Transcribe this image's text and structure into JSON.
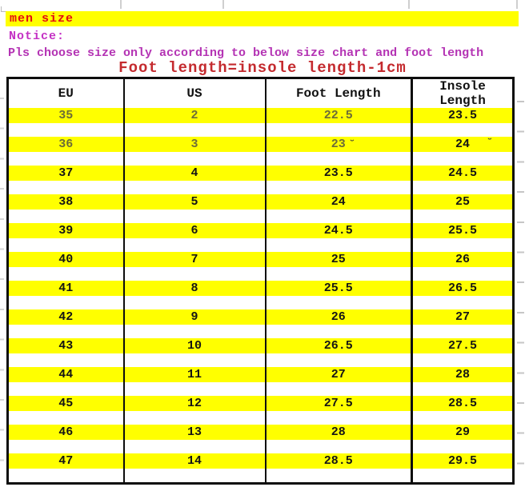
{
  "page": {
    "header_note": "men size",
    "notice_label": "Notice:",
    "notice_text": "Pls choose size only according to below size chart and foot length",
    "formula": "Foot length=insole length-1cm"
  },
  "colors": {
    "highlight_yellow": "#ffff00",
    "header_note_red": "#e30b12",
    "notice_magenta": "#c430c4",
    "formula_red": "#c42a2e",
    "table_border_black": "#0d0d0d",
    "muted_row_text_olive": "#6d6d38"
  },
  "size_chart": {
    "columns": [
      "EU",
      "US",
      "Foot Length",
      "Insole Length"
    ],
    "rows": [
      {
        "eu": "35",
        "us": "2",
        "foot": "22.5",
        "insole": "23.5",
        "muted": true
      },
      {
        "eu": "36",
        "us": "3",
        "foot": "23",
        "insole": "24",
        "muted": true
      },
      {
        "eu": "37",
        "us": "4",
        "foot": "23.5",
        "insole": "24.5",
        "muted": false
      },
      {
        "eu": "38",
        "us": "5",
        "foot": "24",
        "insole": "25",
        "muted": false
      },
      {
        "eu": "39",
        "us": "6",
        "foot": "24.5",
        "insole": "25.5",
        "muted": false
      },
      {
        "eu": "40",
        "us": "7",
        "foot": "25",
        "insole": "26",
        "muted": false
      },
      {
        "eu": "41",
        "us": "8",
        "foot": "25.5",
        "insole": "26.5",
        "muted": false
      },
      {
        "eu": "42",
        "us": "9",
        "foot": "26",
        "insole": "27",
        "muted": false
      },
      {
        "eu": "43",
        "us": "10",
        "foot": "26.5",
        "insole": "27.5",
        "muted": false
      },
      {
        "eu": "44",
        "us": "11",
        "foot": "27",
        "insole": "28",
        "muted": false
      },
      {
        "eu": "45",
        "us": "12",
        "foot": "27.5",
        "insole": "28.5",
        "muted": false
      },
      {
        "eu": "46",
        "us": "13",
        "foot": "28",
        "insole": "29",
        "muted": false
      },
      {
        "eu": "47",
        "us": "14",
        "foot": "28.5",
        "insole": "29.5",
        "muted": false
      }
    ]
  },
  "artifacts": {
    "stray_mark_1": "˘",
    "stray_mark_2": "˘"
  }
}
